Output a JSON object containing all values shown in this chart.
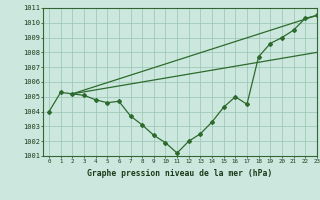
{
  "line1_x": [
    2,
    23
  ],
  "line1_y": [
    1005.2,
    1010.5
  ],
  "line2_x": [
    2,
    23
  ],
  "line2_y": [
    1005.2,
    1008.0
  ],
  "line3_x": [
    0,
    1,
    2,
    3,
    4,
    5,
    6,
    7,
    8,
    9,
    10,
    11,
    12,
    13,
    14,
    15,
    16,
    17,
    18,
    19,
    20,
    21,
    22,
    23
  ],
  "line3_y": [
    1004.0,
    1005.3,
    1005.2,
    1005.1,
    1004.8,
    1004.6,
    1004.7,
    1003.7,
    1003.1,
    1002.4,
    1001.9,
    1001.2,
    1002.0,
    1002.5,
    1003.3,
    1004.3,
    1005.0,
    1004.5,
    1007.7,
    1008.6,
    1009.0,
    1009.5,
    1010.3,
    1010.5
  ],
  "line_color": "#2d6a2d",
  "bg_color": "#cce8de",
  "grid_color": "#99c4b4",
  "xlabel": "Graphe pression niveau de la mer (hPa)",
  "ylim": [
    1001,
    1011
  ],
  "xlim": [
    -0.5,
    23
  ]
}
